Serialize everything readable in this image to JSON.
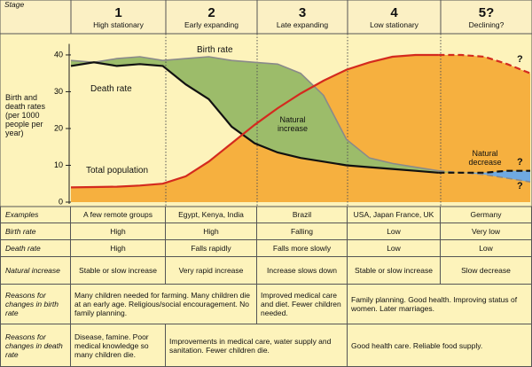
{
  "header": {
    "stage_label": "Stage",
    "stages": [
      {
        "number": "1",
        "name": "High stationary"
      },
      {
        "number": "2",
        "name": "Early expanding"
      },
      {
        "number": "3",
        "name": "Late expanding"
      },
      {
        "number": "4",
        "name": "Low stationary"
      },
      {
        "number": "5?",
        "name": "Declining?"
      }
    ]
  },
  "chart_data": {
    "type": "line",
    "y_label": "Birth and death rates (per 1000 people per year)",
    "x": [
      0,
      0.25,
      0.5,
      0.75,
      1,
      1.25,
      1.5,
      1.75,
      2,
      2.25,
      2.5,
      2.75,
      3,
      3.25,
      3.5,
      3.75,
      4,
      4.25,
      4.5,
      4.75,
      5
    ],
    "xlim": [
      0,
      5
    ],
    "ylim": [
      0,
      43
    ],
    "yticks": [
      0,
      10,
      20,
      30,
      40
    ],
    "dashed_from_x": 4,
    "series": [
      {
        "name": "Birth rate",
        "color": "#8a8a8a",
        "values": [
          38.5,
          38,
          39,
          39.5,
          38.5,
          39,
          39.5,
          38.5,
          38,
          37.5,
          35,
          29,
          17,
          12,
          10.5,
          9.5,
          8.5,
          8,
          7.5,
          6.5,
          5.5
        ]
      },
      {
        "name": "Death rate",
        "color": "#111111",
        "values": [
          37,
          38,
          37,
          37.5,
          37,
          32,
          28,
          20.5,
          16,
          13.5,
          12,
          11,
          10,
          9.5,
          9,
          8.5,
          8,
          8,
          8,
          8.5,
          8.5
        ]
      },
      {
        "name": "Total population",
        "color": "#d42a1e",
        "values": [
          4,
          4.1,
          4.2,
          4.5,
          5,
          7,
          11,
          16,
          21,
          25.5,
          29.5,
          33,
          36,
          38,
          39.5,
          40,
          40,
          40,
          39.5,
          37.5,
          35
        ]
      }
    ],
    "fills": {
      "population": "#f6b03f",
      "increase": "#9cbc6a",
      "decrease": "#6fa9e2"
    },
    "annotations": [
      "Natural increase",
      "Natural decrease",
      "?",
      "?",
      "?"
    ]
  },
  "table": {
    "rows": [
      {
        "label": "Examples",
        "cells": [
          "A few remote groups",
          "Egypt, Kenya, India",
          "Brazil",
          "USA, Japan France, UK",
          "Germany"
        ]
      },
      {
        "label": "Birth rate",
        "cells": [
          "High",
          "High",
          "Falling",
          "Low",
          "Very low"
        ]
      },
      {
        "label": "Death rate",
        "cells": [
          "High",
          "Falls rapidly",
          "Falls more slowly",
          "Low",
          "Low"
        ]
      },
      {
        "label": "Natural increase",
        "cells": [
          "Stable or slow increase",
          "Very rapid increase",
          "Increase slows down",
          "Stable or slow increase",
          "Slow decrease"
        ]
      },
      {
        "label": "Reasons for changes in birth rate",
        "cells": [
          "Many children needed for farming. Many children die at an early age. Religious/social encouragement. No family planning.",
          "Improved medical care and diet. Fewer children needed.",
          "Family planning. Good health. Improving status of women. Later marriages."
        ]
      },
      {
        "label": "Reasons for changes in death rate",
        "cells": [
          "Disease, famine. Poor medical knowledge so many children die.",
          "Improvements in medical care, water supply and sanitation. Fewer children die.",
          "Good health care. Reliable food supply."
        ]
      }
    ]
  }
}
